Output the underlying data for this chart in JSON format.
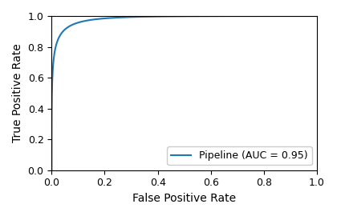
{
  "title": "",
  "xlabel": "False Positive Rate",
  "ylabel": "True Positive Rate",
  "legend_label": "Pipeline (AUC = 0.95)",
  "line_color": "#1f77b4",
  "auc": 0.95,
  "xlim": [
    0.0,
    1.0
  ],
  "ylim": [
    0.0,
    1.0
  ],
  "xticks": [
    0.0,
    0.2,
    0.4,
    0.6,
    0.8,
    1.0
  ],
  "yticks": [
    0.0,
    0.2,
    0.4,
    0.6,
    0.8,
    1.0
  ],
  "figsize": [
    4.2,
    2.7
  ],
  "dpi": 100,
  "background_color": "#ffffff",
  "curve_alpha": 0.07,
  "linewidth": 1.5
}
